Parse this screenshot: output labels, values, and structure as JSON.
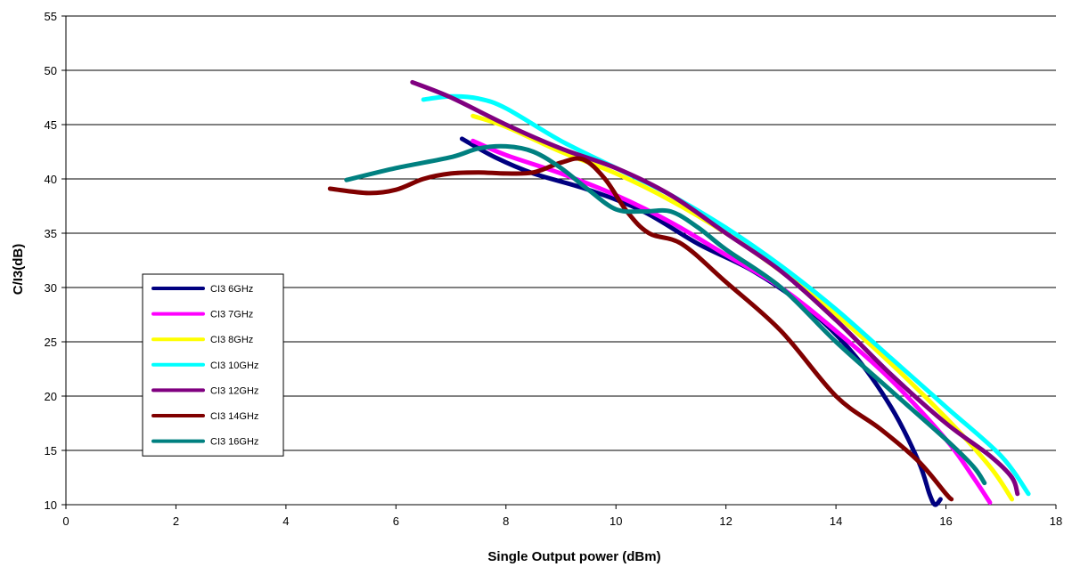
{
  "chart_data": {
    "type": "line",
    "xlabel": "Single Output power (dBm)",
    "ylabel": "C/I3(dB)",
    "xlim": [
      0,
      18
    ],
    "ylim": [
      10,
      55
    ],
    "x_ticks": [
      0,
      2,
      4,
      6,
      8,
      10,
      12,
      14,
      16,
      18
    ],
    "y_ticks": [
      10,
      15,
      20,
      25,
      30,
      35,
      40,
      45,
      50,
      55
    ],
    "grid": "horizontal",
    "legend_position": "left",
    "series": [
      {
        "name": "CI3 6GHz",
        "color": "#000080",
        "points": [
          [
            7.2,
            43.7
          ],
          [
            7.8,
            42.0
          ],
          [
            8.5,
            40.5
          ],
          [
            9.5,
            39.0
          ],
          [
            10.5,
            37.0
          ],
          [
            11.5,
            34.0
          ],
          [
            12.5,
            31.5
          ],
          [
            13.5,
            28.0
          ],
          [
            14.3,
            24.0
          ],
          [
            15.0,
            19.0
          ],
          [
            15.5,
            14.0
          ],
          [
            15.7,
            11.0
          ],
          [
            15.8,
            10.0
          ],
          [
            15.9,
            10.5
          ]
        ]
      },
      {
        "name": "CI3 7GHz",
        "color": "#ff00ff",
        "points": [
          [
            7.4,
            43.5
          ],
          [
            8.0,
            42.2
          ],
          [
            9.0,
            40.5
          ],
          [
            10.0,
            38.5
          ],
          [
            11.0,
            36.0
          ],
          [
            12.0,
            33.0
          ],
          [
            13.0,
            30.0
          ],
          [
            14.0,
            26.0
          ],
          [
            15.0,
            21.5
          ],
          [
            16.0,
            16.0
          ],
          [
            16.5,
            12.5
          ],
          [
            16.8,
            10.2
          ]
        ]
      },
      {
        "name": "CI3 8GHz",
        "color": "#ffff00",
        "points": [
          [
            7.4,
            45.8
          ],
          [
            8.0,
            44.8
          ],
          [
            9.0,
            42.5
          ],
          [
            10.0,
            40.5
          ],
          [
            11.0,
            38.0
          ],
          [
            12.0,
            35.0
          ],
          [
            13.0,
            31.5
          ],
          [
            14.0,
            27.5
          ],
          [
            15.0,
            23.0
          ],
          [
            16.0,
            18.0
          ],
          [
            16.8,
            13.5
          ],
          [
            17.2,
            10.5
          ]
        ]
      },
      {
        "name": "CI3 10GHz",
        "color": "#00ffff",
        "points": [
          [
            6.5,
            47.3
          ],
          [
            7.0,
            47.6
          ],
          [
            7.5,
            47.4
          ],
          [
            8.0,
            46.5
          ],
          [
            9.0,
            43.5
          ],
          [
            10.0,
            41.0
          ],
          [
            11.0,
            38.5
          ],
          [
            12.0,
            35.5
          ],
          [
            13.0,
            32.0
          ],
          [
            14.0,
            28.0
          ],
          [
            15.0,
            23.5
          ],
          [
            16.0,
            19.0
          ],
          [
            17.0,
            14.5
          ],
          [
            17.5,
            11.0
          ]
        ]
      },
      {
        "name": "CI3 12GHz",
        "color": "#800080",
        "points": [
          [
            6.3,
            48.9
          ],
          [
            7.0,
            47.5
          ],
          [
            8.0,
            45.0
          ],
          [
            9.0,
            42.8
          ],
          [
            10.0,
            41.0
          ],
          [
            11.0,
            38.5
          ],
          [
            12.0,
            35.0
          ],
          [
            13.0,
            31.5
          ],
          [
            14.0,
            27.0
          ],
          [
            15.0,
            22.0
          ],
          [
            16.0,
            17.5
          ],
          [
            16.8,
            14.5
          ],
          [
            17.2,
            12.5
          ],
          [
            17.3,
            11.0
          ]
        ]
      },
      {
        "name": "CI3 14GHz",
        "color": "#800000",
        "points": [
          [
            4.8,
            39.1
          ],
          [
            5.5,
            38.7
          ],
          [
            6.0,
            39.0
          ],
          [
            6.5,
            40.0
          ],
          [
            7.0,
            40.5
          ],
          [
            7.5,
            40.6
          ],
          [
            8.0,
            40.5
          ],
          [
            8.5,
            40.6
          ],
          [
            9.0,
            41.5
          ],
          [
            9.4,
            41.8
          ],
          [
            9.8,
            40.0
          ],
          [
            10.2,
            37.0
          ],
          [
            10.6,
            35.0
          ],
          [
            11.2,
            34.0
          ],
          [
            12.0,
            30.5
          ],
          [
            13.0,
            26.0
          ],
          [
            14.0,
            20.0
          ],
          [
            14.8,
            17.0
          ],
          [
            15.5,
            14.0
          ],
          [
            16.0,
            11.0
          ],
          [
            16.1,
            10.5
          ]
        ]
      },
      {
        "name": "CI3 16GHz",
        "color": "#008080",
        "points": [
          [
            5.1,
            39.9
          ],
          [
            6.0,
            41.0
          ],
          [
            7.0,
            42.0
          ],
          [
            7.5,
            42.8
          ],
          [
            8.0,
            43.0
          ],
          [
            8.5,
            42.5
          ],
          [
            9.0,
            41.0
          ],
          [
            9.5,
            39.0
          ],
          [
            10.0,
            37.2
          ],
          [
            10.5,
            37.0
          ],
          [
            11.0,
            37.0
          ],
          [
            11.5,
            35.5
          ],
          [
            12.0,
            33.5
          ],
          [
            13.0,
            30.0
          ],
          [
            14.0,
            25.0
          ],
          [
            15.0,
            20.5
          ],
          [
            16.0,
            16.0
          ],
          [
            16.5,
            13.5
          ],
          [
            16.7,
            12.0
          ]
        ]
      }
    ]
  }
}
